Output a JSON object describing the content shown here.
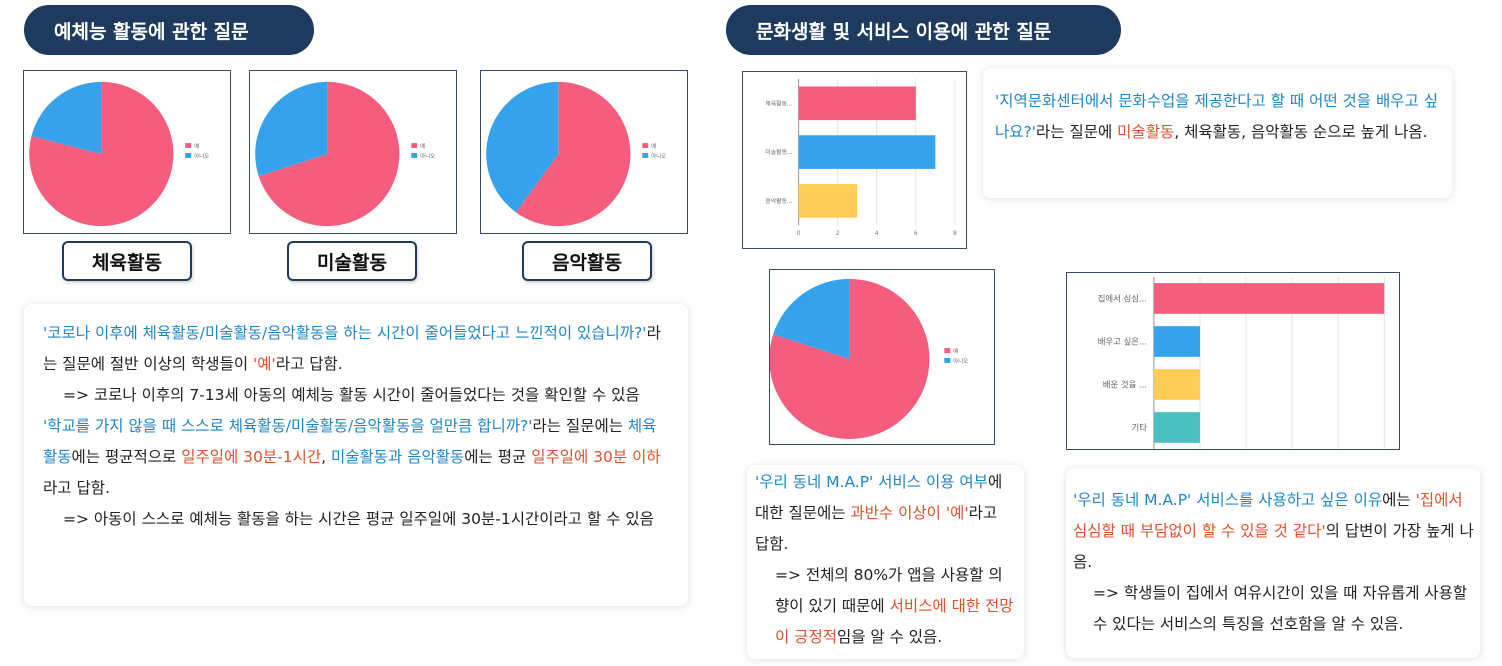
{
  "left_section": {
    "title": "예체능 활동에 관한 질문",
    "pies": [
      {
        "label": "체육활동",
        "yes_fraction": 0.79,
        "legend_yes": "예",
        "legend_no": "아니오"
      },
      {
        "label": "미술활동",
        "yes_fraction": 0.7,
        "legend_yes": "예",
        "legend_no": "아니오"
      },
      {
        "label": "음악활동",
        "yes_fraction": 0.6,
        "legend_yes": "예",
        "legend_no": "아니오"
      }
    ],
    "card": {
      "q1": "'코로나 이후에 체육활동/미술활동/음악활동을 하는 시간이 줄어들었다고 느낀적이 있습니까?'",
      "q1_tail_a": "라는 질문에 절반 이상의 학생들이 ",
      "q1_yes": "'예'",
      "q1_tail_b": "라고 답함.",
      "c1": "=> 코로나 이후의 7-13세 아동의 예체능 활동 시간이 줄어들었다는 것을 확인할 수 있음",
      "q2": "'학교를 가지 않을 때 스스로 체육활동/미술활동/음악활동을 얼만큼 합니까?'",
      "q2_tail_a": "라는 질문에는 ",
      "q2_sport": "체육활동",
      "q2_tail_b": "에는 평균적으로 ",
      "q2_sport_time": "일주일에 30분-1시간",
      "q2_comma": ", ",
      "q2_artmusic": "미술활동과 음악활동",
      "q2_tail_c": "에는 평균 ",
      "q2_artmusic_time": "일주일에 30분 이하",
      "q2_tail_d": "라고 답함.",
      "c2": "=> 아동이 스스로 예체능 활동을 하는 시간은 평균 일주일에 30분-1시간이라고 할 수 있음"
    }
  },
  "right_section": {
    "title": "문화생활 및 서비스 이용에 관한 질문",
    "bar_chart_1": {
      "chart_data": {
        "type": "bar",
        "categories": [
          "체육활동...",
          "미술활동...",
          "음악활동..."
        ],
        "values": [
          6,
          7,
          3
        ],
        "xlim": [
          0,
          8
        ],
        "xticks": [
          "0",
          "2",
          "4",
          "6",
          "8"
        ],
        "colors": [
          "#f45d7e",
          "#36a2eb",
          "#ffcd56"
        ]
      }
    },
    "card1": {
      "q": "'지역문화센터에서 문화수업을 제공한다고 할 때 어떤 것을 배우고 싶나요?'",
      "tail_a": "라는 질문에 ",
      "art": "미술활동",
      "tail_b": ", 체육활동, 음악활동 순으로 높게 나옴."
    },
    "pie_map": {
      "yes_fraction": 0.8,
      "legend_yes": "예",
      "legend_no": "아니오"
    },
    "bar_chart_2": {
      "chart_data": {
        "type": "bar",
        "categories": [
          "집에서 심심...",
          "배우고 싶은...",
          "배운 것을 ...",
          "기타"
        ],
        "values": [
          10,
          2,
          2,
          2
        ],
        "xlim": [
          0,
          10
        ],
        "colors": [
          "#f45d7e",
          "#36a2eb",
          "#ffcd56",
          "#4bc0c0"
        ]
      }
    },
    "card2": {
      "q": "'우리 동네 M.A.P' 서비스 이용 여부",
      "tail_a": "에 대한 질문에는 ",
      "majority": "과반수 이상이 '예'",
      "tail_b": "라고 답함.",
      "c_a": "=> 전체의 80%가 앱을 사용할 의향이 있기 때문에 ",
      "c_pos": "서비스에 대한 전망이 긍정적",
      "c_b": "임을 알 수 있음."
    },
    "card3": {
      "q": "'우리 동네 M.A.P' 서비스를 사용하고 싶은 이유",
      "tail_a": "에는",
      "answer": "'집에서 심심할 때 부담없이 할 수 있을 것 같다'",
      "tail_b": "의 답변이 가장 높게 나옴.",
      "c": "=> 학생들이 집에서 여유시간이 있을 때 자유롭게 사용할 수 있다는 서비스의 특징을 선호함을 알 수 있음."
    }
  },
  "colors": {
    "pie_yes": "#f45d7e",
    "pie_no": "#36a2eb",
    "navy": "#1f3a5f",
    "blue_text": "#1f86c6",
    "red_text": "#e0502c"
  }
}
